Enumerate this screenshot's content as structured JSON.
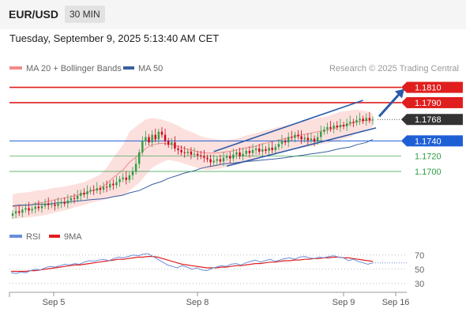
{
  "header": {
    "symbol": "EUR/USD",
    "timeframe": "30 MIN"
  },
  "datetime": "Tuesday, September 9, 2025 5:13:40 AM CET",
  "legend": {
    "items": [
      {
        "label": "MA 20 + Bollinger Bands",
        "color": "#f28b8b"
      },
      {
        "label": "MA 50",
        "color": "#3a5fa0"
      }
    ],
    "credit": "Research © 2025 Trading Central"
  },
  "colors": {
    "up": "#2f9e44",
    "down": "#d0021b",
    "resistance": "#e01e1e",
    "pivot": "#1f5fd6",
    "support": "#2f9e44",
    "current": "#333333",
    "arrow": "#2a5aa8",
    "channel": "#2a5aa8",
    "band": "#fbd6d3",
    "ma20": "#f28b8b",
    "ma50": "#3a5fa0",
    "rsi": "#6a8fd8",
    "rsi_ma": "#e01e1e"
  },
  "chart_data": [
    {
      "type": "candlestick",
      "x_labels": [
        "Sep 5",
        "Sep 8",
        "Sep 9",
        "Sep 16"
      ],
      "ylim": [
        1.1637,
        1.1823
      ],
      "levels": [
        {
          "value": 1.181,
          "label": "1.1810",
          "kind": "resistance"
        },
        {
          "value": 1.179,
          "label": "1.1790",
          "kind": "resistance"
        },
        {
          "value": 1.1768,
          "label": "1.1768",
          "kind": "current"
        },
        {
          "value": 1.174,
          "label": "1.1740",
          "kind": "pivot"
        },
        {
          "value": 1.172,
          "label": "1.1720",
          "kind": "support"
        },
        {
          "value": 1.17,
          "label": "1.1700",
          "kind": "support"
        }
      ],
      "close": [
        1.1645,
        1.1648,
        1.1646,
        1.165,
        1.1652,
        1.1649,
        1.1651,
        1.1654,
        1.1652,
        1.1655,
        1.1658,
        1.1656,
        1.1657,
        1.1655,
        1.1658,
        1.166,
        1.1658,
        1.1662,
        1.1665,
        1.1664,
        1.1668,
        1.1672,
        1.167,
        1.1674,
        1.1676,
        1.1675,
        1.1678,
        1.1676,
        1.168,
        1.1679,
        1.1684,
        1.1682,
        1.1686,
        1.169,
        1.1692,
        1.1689,
        1.1695,
        1.17,
        1.171,
        1.1725,
        1.174,
        1.1745,
        1.1738,
        1.1748,
        1.1742,
        1.1752,
        1.1748,
        1.174,
        1.1735,
        1.1738,
        1.173,
        1.1728,
        1.1725,
        1.1724,
        1.1726,
        1.1722,
        1.1723,
        1.1721,
        1.172,
        1.1718,
        1.1716,
        1.1712,
        1.1714,
        1.1716,
        1.1713,
        1.1718,
        1.172,
        1.1717,
        1.1722,
        1.1725,
        1.172,
        1.1723,
        1.1727,
        1.1724,
        1.1728,
        1.173,
        1.1726,
        1.1729,
        1.1727,
        1.1731,
        1.1728,
        1.1732,
        1.1736,
        1.174,
        1.1738,
        1.1745,
        1.1744,
        1.1748,
        1.1746,
        1.1742,
        1.1744,
        1.1741,
        1.1743,
        1.1739,
        1.1745,
        1.1752,
        1.1755,
        1.1758,
        1.1756,
        1.176,
        1.1758,
        1.1761,
        1.1759,
        1.1763,
        1.1765,
        1.1764,
        1.1767,
        1.1769,
        1.1766,
        1.177,
        1.1767,
        1.1768
      ],
      "bollinger": {
        "upper": [
          1.167,
          1.1672,
          1.1673,
          1.1675,
          1.1676,
          1.1678,
          1.1679,
          1.1681,
          1.1683,
          1.1686,
          1.169,
          1.1696,
          1.1705,
          1.1718,
          1.1735,
          1.1752,
          1.1762,
          1.1768,
          1.177,
          1.1768,
          1.1765,
          1.176,
          1.1755,
          1.175,
          1.1746,
          1.1744,
          1.1742,
          1.1741,
          1.1742,
          1.1744,
          1.1747,
          1.175,
          1.1753,
          1.1756,
          1.1758,
          1.176,
          1.1763,
          1.1766,
          1.1768,
          1.177,
          1.1772,
          1.1775,
          1.1778,
          1.178,
          1.1781,
          1.1779,
          1.1775
        ],
        "lower": [
          1.1638,
          1.1639,
          1.164,
          1.1641,
          1.1643,
          1.1645,
          1.1647,
          1.165,
          1.1653,
          1.1656,
          1.1659,
          1.1662,
          1.1664,
          1.1666,
          1.1668,
          1.1675,
          1.1685,
          1.1695,
          1.1705,
          1.1712,
          1.1715,
          1.1713,
          1.171,
          1.1706,
          1.1703,
          1.1702,
          1.1703,
          1.1705,
          1.1708,
          1.171,
          1.1712,
          1.1715,
          1.1718,
          1.1721,
          1.1724,
          1.1727,
          1.1729,
          1.1731,
          1.1733,
          1.1735,
          1.1737,
          1.1739,
          1.1741,
          1.1745,
          1.175,
          1.1755,
          1.1758
        ],
        "ma20": [
          1.1654,
          1.1655,
          1.1656,
          1.1658,
          1.166,
          1.1662,
          1.1664,
          1.1666,
          1.1668,
          1.1671,
          1.1674,
          1.1678,
          1.1684,
          1.1692,
          1.1702,
          1.1712,
          1.1722,
          1.173,
          1.1735,
          1.1737,
          1.1736,
          1.1733,
          1.173,
          1.1727,
          1.1725,
          1.1724,
          1.1724,
          1.1725,
          1.1727,
          1.1729,
          1.1731,
          1.1733,
          1.1736,
          1.1739,
          1.1741,
          1.1743,
          1.1746,
          1.1748,
          1.175,
          1.1752,
          1.1754,
          1.1756,
          1.1759,
          1.1762,
          1.1765,
          1.1767,
          1.1767
        ]
      },
      "ma50": [
        1.1655,
        1.1656,
        1.1656,
        1.1657,
        1.1657,
        1.1658,
        1.1659,
        1.166,
        1.1661,
        1.1662,
        1.1663,
        1.1664,
        1.1665,
        1.1667,
        1.1669,
        1.1672,
        1.1675,
        1.1679,
        1.1683,
        1.1687,
        1.1691,
        1.1695,
        1.1698,
        1.1701,
        1.1704,
        1.1706,
        1.1708,
        1.171,
        1.1711,
        1.1712,
        1.1713,
        1.1714,
        1.1715,
        1.1716,
        1.1717,
        1.1718,
        1.172,
        1.1721,
        1.1723,
        1.1724,
        1.1726,
        1.1728,
        1.173,
        1.1732,
        1.1735,
        1.1738,
        1.1742
      ]
    },
    {
      "type": "line",
      "name": "RSI",
      "legend": [
        {
          "label": "RSI",
          "color": "#6a8fd8"
        },
        {
          "label": "9MA",
          "color": "#e01e1e"
        }
      ],
      "ylim": [
        22,
        82
      ],
      "ticks": [
        {
          "value": 70,
          "label": "70"
        },
        {
          "value": 50,
          "label": "50"
        },
        {
          "value": 30,
          "label": "30"
        }
      ],
      "rsi": [
        45,
        44,
        46,
        45,
        48,
        50,
        49,
        52,
        54,
        53,
        55,
        57,
        56,
        58,
        57,
        60,
        62,
        61,
        63,
        64,
        62,
        65,
        67,
        66,
        68,
        70,
        69,
        71,
        72,
        68,
        64,
        60,
        56,
        54,
        52,
        55,
        53,
        50,
        52,
        49,
        48,
        51,
        53,
        55,
        54,
        57,
        58,
        56,
        59,
        61,
        63,
        60,
        62,
        64,
        61,
        63,
        65,
        66,
        64,
        67,
        68,
        66,
        65,
        67,
        66,
        68,
        69,
        67,
        66,
        62,
        64,
        61,
        59,
        57,
        59
      ],
      "rsi_ma": [
        47,
        47,
        47,
        47,
        48,
        48,
        49,
        50,
        51,
        52,
        53,
        54,
        55,
        56,
        56,
        57,
        58,
        59,
        60,
        61,
        62,
        63,
        64,
        64,
        65,
        66,
        67,
        67,
        68,
        68,
        67,
        65,
        63,
        61,
        59,
        57,
        56,
        55,
        54,
        53,
        52,
        52,
        52,
        53,
        53,
        54,
        55,
        55,
        56,
        57,
        58,
        58,
        59,
        60,
        60,
        61,
        62,
        62,
        63,
        63,
        64,
        64,
        65,
        65,
        66,
        66,
        67,
        67,
        66,
        66,
        65,
        64,
        63,
        62,
        61
      ]
    }
  ]
}
